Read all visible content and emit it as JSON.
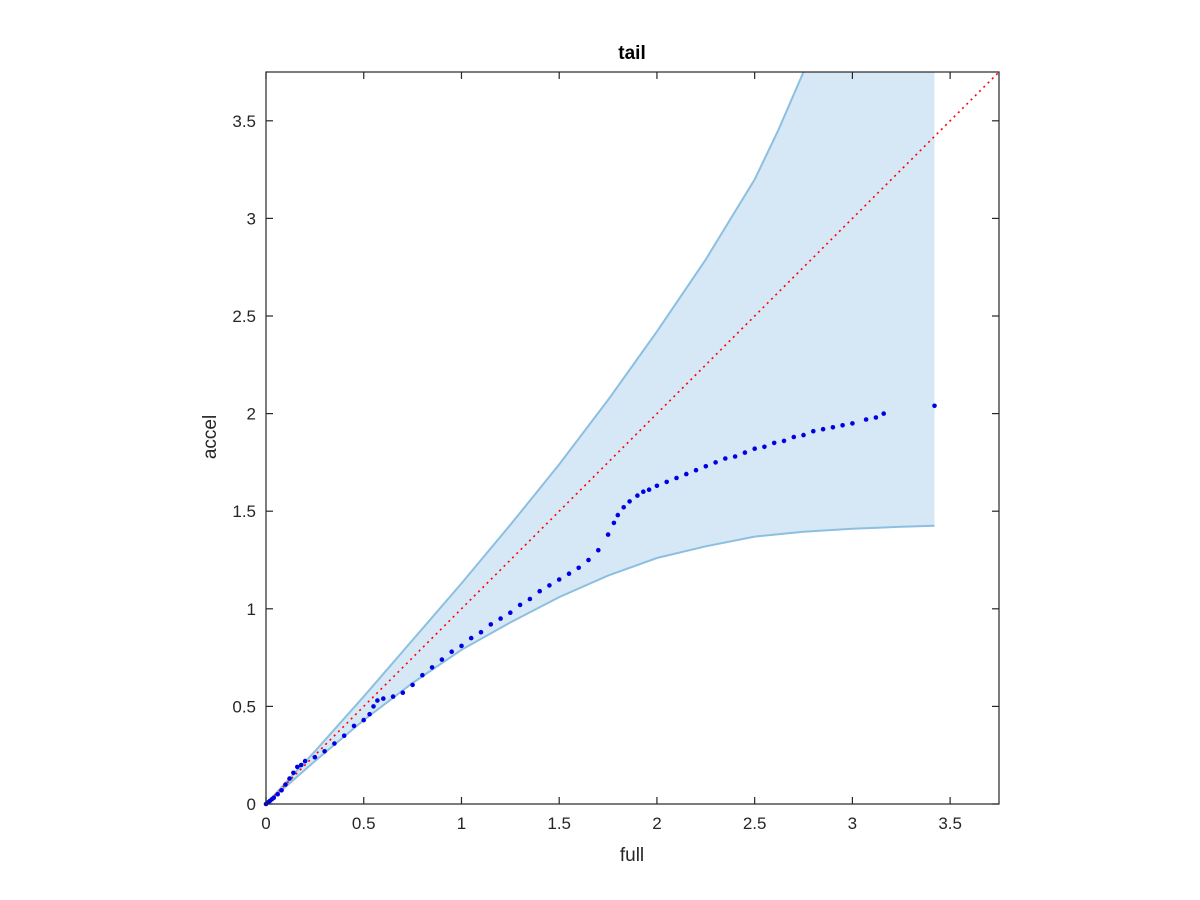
{
  "chart_data": {
    "type": "scatter",
    "title": "tail",
    "xlabel": "full",
    "ylabel": "accel",
    "xlim": [
      0,
      3.75
    ],
    "ylim": [
      0,
      3.75
    ],
    "xticks": [
      0,
      0.5,
      1,
      1.5,
      2,
      2.5,
      3,
      3.5
    ],
    "yticks": [
      0,
      0.5,
      1,
      1.5,
      2,
      2.5,
      3,
      3.5
    ],
    "xtick_labels": [
      "0",
      "0.5",
      "1",
      "1.5",
      "2",
      "2.5",
      "3",
      "3.5"
    ],
    "ytick_labels": [
      "0",
      "0.5",
      "1",
      "1.5",
      "2",
      "2.5",
      "3",
      "3.5"
    ],
    "grid": false,
    "colors": {
      "band_fill": "#d6e8f5",
      "band_edge": "#8cbfe0",
      "points": "#0000e6",
      "reference": "#ff0000",
      "axes": "#262626"
    },
    "reference_line": {
      "style": "dotted",
      "from": [
        0,
        0
      ],
      "to": [
        3.75,
        3.75
      ]
    },
    "band": {
      "upper": [
        [
          0,
          0
        ],
        [
          0.25,
          0.27
        ],
        [
          0.5,
          0.55
        ],
        [
          0.75,
          0.84
        ],
        [
          1,
          1.13
        ],
        [
          1.25,
          1.43
        ],
        [
          1.5,
          1.74
        ],
        [
          1.75,
          2.07
        ],
        [
          2,
          2.42
        ],
        [
          2.25,
          2.79
        ],
        [
          2.5,
          3.2
        ],
        [
          2.62,
          3.45
        ],
        [
          2.75,
          3.75
        ],
        [
          3.42,
          3.75
        ]
      ],
      "lower": [
        [
          0,
          0
        ],
        [
          0.25,
          0.22
        ],
        [
          0.5,
          0.43
        ],
        [
          0.75,
          0.62
        ],
        [
          1,
          0.79
        ],
        [
          1.25,
          0.93
        ],
        [
          1.5,
          1.06
        ],
        [
          1.75,
          1.17
        ],
        [
          2,
          1.26
        ],
        [
          2.25,
          1.32
        ],
        [
          2.5,
          1.37
        ],
        [
          2.75,
          1.395
        ],
        [
          3,
          1.41
        ],
        [
          3.25,
          1.42
        ],
        [
          3.42,
          1.425
        ]
      ]
    },
    "series": [
      {
        "x": [
          0,
          0.01,
          0.02,
          0.03,
          0.04,
          0.06,
          0.08,
          0.1,
          0.12,
          0.14,
          0.16,
          0.18,
          0.2,
          0.25,
          0.3,
          0.35,
          0.4,
          0.45,
          0.5,
          0.53,
          0.55,
          0.57,
          0.6,
          0.65,
          0.7,
          0.75,
          0.8,
          0.85,
          0.9,
          0.95,
          1,
          1.05,
          1.1,
          1.15,
          1.2,
          1.25,
          1.3,
          1.35,
          1.4,
          1.45,
          1.5,
          1.55,
          1.6,
          1.65,
          1.7,
          1.75,
          1.78,
          1.8,
          1.83,
          1.86,
          1.9,
          1.93,
          1.96,
          2,
          2.05,
          2.1,
          2.15,
          2.2,
          2.25,
          2.3,
          2.35,
          2.4,
          2.45,
          2.5,
          2.55,
          2.6,
          2.65,
          2.7,
          2.75,
          2.8,
          2.85,
          2.9,
          2.95,
          3,
          3.07,
          3.12,
          3.16,
          3.42
        ],
        "y": [
          0,
          0.008,
          0.016,
          0.024,
          0.032,
          0.05,
          0.07,
          0.1,
          0.13,
          0.16,
          0.19,
          0.2,
          0.22,
          0.24,
          0.27,
          0.31,
          0.35,
          0.4,
          0.43,
          0.46,
          0.5,
          0.53,
          0.54,
          0.55,
          0.57,
          0.61,
          0.66,
          0.7,
          0.74,
          0.78,
          0.81,
          0.85,
          0.88,
          0.92,
          0.95,
          0.98,
          1.02,
          1.05,
          1.09,
          1.12,
          1.15,
          1.18,
          1.21,
          1.25,
          1.3,
          1.38,
          1.44,
          1.48,
          1.52,
          1.55,
          1.58,
          1.6,
          1.61,
          1.63,
          1.65,
          1.67,
          1.69,
          1.71,
          1.73,
          1.75,
          1.77,
          1.78,
          1.8,
          1.82,
          1.83,
          1.85,
          1.86,
          1.88,
          1.89,
          1.91,
          1.92,
          1.93,
          1.94,
          1.95,
          1.97,
          1.98,
          2,
          2.04
        ]
      }
    ]
  }
}
